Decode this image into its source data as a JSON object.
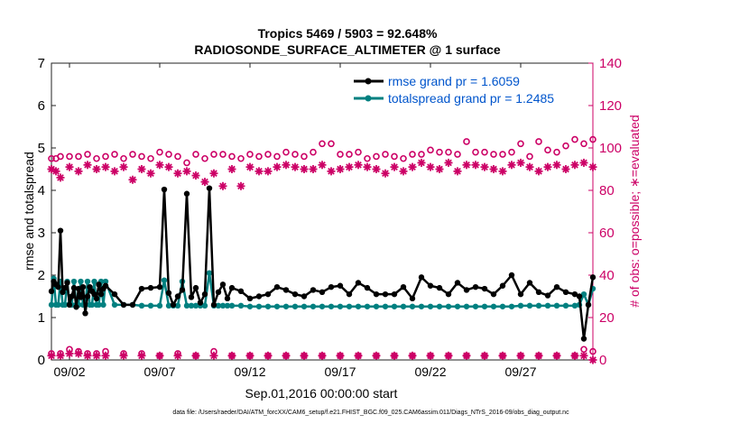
{
  "chart_data": {
    "type": "line",
    "title_line1": "Tropics 5469 / 5903 = 92.648%",
    "title_line2": "RADIOSONDE_SURFACE_ALTIMETER @ 1 surface",
    "xlabel": "Sep.01,2016 00:00:00 start",
    "ylabel_left": "rmse and totalspread",
    "ylabel_right": "# of obs: o=possible; ∗=evaluated",
    "footnote": "data file: /Users/raeder/DAI/ATM_forcXX/CAM6_setup/f.e21.FHIST_BGC.f09_025.CAM6assim.011/Diags_NTrS_2016-09/obs_diag_output.nc",
    "x_range": [
      1.0,
      31.0
    ],
    "ylim_left": [
      0,
      7
    ],
    "ylim_right": [
      0,
      140
    ],
    "x_ticks": [
      {
        "x": 2,
        "label": "09/02"
      },
      {
        "x": 7,
        "label": "09/07"
      },
      {
        "x": 12,
        "label": "09/12"
      },
      {
        "x": 17,
        "label": "09/17"
      },
      {
        "x": 22,
        "label": "09/22"
      },
      {
        "x": 27,
        "label": "09/27"
      }
    ],
    "y_ticks_left": [
      0,
      1,
      2,
      3,
      4,
      5,
      6,
      7
    ],
    "y_ticks_right": [
      0,
      20,
      40,
      60,
      80,
      100,
      120,
      140
    ],
    "colors": {
      "rmse": "#000000",
      "spread": "#008080",
      "obs": "#cc0066",
      "legend_text": "#0055cc",
      "axis": "#222222"
    },
    "legend": [
      {
        "name": "rmse grand pr = 1.6059",
        "key": "rmse"
      },
      {
        "name": "totalspread grand pr = 1.2485",
        "key": "spread"
      }
    ],
    "series": [
      {
        "name": "rmse",
        "axis": "left",
        "x": [
          1.0,
          1.125,
          1.25,
          1.375,
          1.5,
          1.625,
          1.75,
          1.875,
          2.0,
          2.125,
          2.25,
          2.375,
          2.5,
          2.625,
          2.75,
          2.875,
          3.0,
          3.125,
          3.25,
          3.375,
          3.5,
          3.625,
          3.75,
          3.875,
          4.0,
          4.5,
          5.0,
          5.5,
          6.0,
          6.5,
          7.0,
          7.25,
          7.5,
          7.75,
          8.0,
          8.25,
          8.5,
          8.75,
          9.0,
          9.25,
          9.5,
          9.75,
          10.0,
          10.25,
          10.5,
          10.75,
          11.0,
          11.5,
          12.0,
          12.5,
          13.0,
          13.5,
          14.0,
          14.5,
          15.0,
          15.5,
          16.0,
          16.5,
          17.0,
          17.5,
          18.0,
          18.5,
          19.0,
          19.5,
          20.0,
          20.5,
          21.0,
          21.5,
          22.0,
          22.5,
          23.0,
          23.5,
          24.0,
          24.5,
          25.0,
          25.5,
          26.0,
          26.5,
          27.0,
          27.5,
          28.0,
          28.5,
          29.0,
          29.5,
          30.0,
          30.25,
          30.5,
          30.75,
          31.0
        ],
        "values": [
          1.62,
          1.85,
          1.78,
          1.72,
          3.05,
          1.6,
          1.7,
          1.82,
          1.3,
          1.5,
          1.7,
          1.25,
          1.68,
          1.48,
          1.72,
          1.1,
          1.5,
          1.72,
          1.62,
          1.55,
          1.45,
          1.78,
          1.55,
          1.68,
          1.75,
          1.55,
          1.3,
          1.3,
          1.68,
          1.7,
          1.72,
          4.02,
          1.58,
          1.3,
          1.5,
          1.65,
          3.92,
          1.48,
          1.7,
          1.35,
          1.55,
          4.05,
          1.3,
          1.6,
          1.78,
          1.45,
          1.7,
          1.62,
          1.45,
          1.5,
          1.55,
          1.72,
          1.65,
          1.55,
          1.5,
          1.65,
          1.6,
          1.72,
          1.75,
          1.55,
          1.82,
          1.7,
          1.55,
          1.55,
          1.55,
          1.72,
          1.45,
          1.95,
          1.75,
          1.7,
          1.55,
          1.82,
          1.65,
          1.72,
          1.68,
          1.55,
          1.75,
          2.0,
          1.55,
          1.82,
          1.6,
          1.52,
          1.72,
          1.6,
          1.55,
          1.5,
          0.5,
          1.3,
          1.95
        ]
      },
      {
        "name": "totalspread",
        "axis": "left",
        "x": [
          1.0,
          1.125,
          1.25,
          1.375,
          1.5,
          1.625,
          1.75,
          1.875,
          2.0,
          2.125,
          2.25,
          2.375,
          2.5,
          2.625,
          2.75,
          2.875,
          3.0,
          3.125,
          3.25,
          3.375,
          3.5,
          3.625,
          3.75,
          3.875,
          4.0,
          4.5,
          5.0,
          5.5,
          6.0,
          6.5,
          7.0,
          7.25,
          7.5,
          7.75,
          8.0,
          8.25,
          8.5,
          8.75,
          9.0,
          9.25,
          9.5,
          9.75,
          10.0,
          10.25,
          10.5,
          10.75,
          11.0,
          11.5,
          12.0,
          12.5,
          13.0,
          13.5,
          14.0,
          14.5,
          15.0,
          15.5,
          16.0,
          16.5,
          17.0,
          17.5,
          18.0,
          18.5,
          19.0,
          19.5,
          20.0,
          20.5,
          21.0,
          21.5,
          22.0,
          22.5,
          23.0,
          23.5,
          24.0,
          24.5,
          25.0,
          25.5,
          26.0,
          26.5,
          27.0,
          27.5,
          28.0,
          28.5,
          29.0,
          29.5,
          30.0,
          30.25,
          30.5,
          30.75,
          31.0
        ],
        "values": [
          1.3,
          1.92,
          1.3,
          1.3,
          1.85,
          1.3,
          1.3,
          1.85,
          1.32,
          1.3,
          1.85,
          1.3,
          1.3,
          1.85,
          1.3,
          1.3,
          1.85,
          1.3,
          1.3,
          1.85,
          1.3,
          1.3,
          1.85,
          1.3,
          1.85,
          1.3,
          1.3,
          1.3,
          1.28,
          1.28,
          1.28,
          1.88,
          1.28,
          1.28,
          1.28,
          1.85,
          1.28,
          1.28,
          1.28,
          1.28,
          1.28,
          2.05,
          1.28,
          1.28,
          1.28,
          1.28,
          1.28,
          1.28,
          1.26,
          1.26,
          1.26,
          1.26,
          1.26,
          1.26,
          1.26,
          1.26,
          1.26,
          1.26,
          1.26,
          1.26,
          1.26,
          1.26,
          1.26,
          1.26,
          1.26,
          1.26,
          1.26,
          1.26,
          1.26,
          1.26,
          1.26,
          1.26,
          1.26,
          1.26,
          1.26,
          1.26,
          1.26,
          1.26,
          1.28,
          1.28,
          1.28,
          1.28,
          1.28,
          1.28,
          1.28,
          1.3,
          1.55,
          1.3,
          1.68
        ]
      },
      {
        "name": "possible",
        "axis": "right",
        "x": [
          1.0,
          1.25,
          1.5,
          2.0,
          2.5,
          3.0,
          3.5,
          4.0,
          4.5,
          5.0,
          5.5,
          6.0,
          6.5,
          7.0,
          7.5,
          8.0,
          8.5,
          9.0,
          9.5,
          10.0,
          10.5,
          11.0,
          11.5,
          12.0,
          12.5,
          13.0,
          13.5,
          14.0,
          14.5,
          15.0,
          15.5,
          16.0,
          16.5,
          17.0,
          17.5,
          18.0,
          18.5,
          19.0,
          19.5,
          20.0,
          20.5,
          21.0,
          21.5,
          22.0,
          22.5,
          23.0,
          23.5,
          24.0,
          24.5,
          25.0,
          25.5,
          26.0,
          26.5,
          27.0,
          27.5,
          28.0,
          28.5,
          29.0,
          29.5,
          30.0,
          30.5,
          31.0
        ],
        "values": [
          95,
          95,
          96,
          96,
          96,
          97,
          95,
          96,
          97,
          95,
          97,
          96,
          95,
          98,
          97,
          96,
          93,
          97,
          95,
          97,
          97,
          96,
          95,
          97,
          96,
          97,
          96,
          98,
          97,
          96,
          98,
          102,
          102,
          97,
          97,
          98,
          95,
          96,
          97,
          96,
          95,
          97,
          97,
          99,
          98,
          98,
          97,
          103,
          98,
          98,
          97,
          97,
          98,
          102,
          96,
          103,
          99,
          98,
          101,
          104,
          102,
          104
        ]
      },
      {
        "name": "evaluated",
        "axis": "right",
        "x": [
          1.0,
          1.25,
          1.5,
          2.0,
          2.5,
          3.0,
          3.5,
          4.0,
          4.5,
          5.0,
          5.5,
          6.0,
          6.5,
          7.0,
          7.5,
          8.0,
          8.5,
          9.0,
          9.5,
          10.0,
          10.5,
          11.0,
          11.5,
          12.0,
          12.5,
          13.0,
          13.5,
          14.0,
          14.5,
          15.0,
          15.5,
          16.0,
          16.5,
          17.0,
          17.5,
          18.0,
          18.5,
          19.0,
          19.5,
          20.0,
          20.5,
          21.0,
          21.5,
          22.0,
          22.5,
          23.0,
          23.5,
          24.0,
          24.5,
          25.0,
          25.5,
          26.0,
          26.5,
          27.0,
          27.5,
          28.0,
          28.5,
          29.0,
          29.5,
          30.0,
          30.5,
          31.0
        ],
        "values": [
          90,
          89,
          86,
          91,
          89,
          92,
          90,
          91,
          89,
          91,
          85,
          90,
          88,
          92,
          91,
          88,
          89,
          87,
          84,
          88,
          82,
          90,
          82,
          91,
          89,
          89,
          91,
          92,
          91,
          90,
          90,
          92,
          89,
          90,
          91,
          92,
          91,
          90,
          88,
          91,
          89,
          91,
          93,
          91,
          90,
          93,
          89,
          92,
          92,
          91,
          90,
          89,
          92,
          93,
          91,
          89,
          91,
          92,
          90,
          92,
          93,
          91
        ]
      },
      {
        "name": "possible_bottom",
        "axis": "right",
        "x": [
          1.0,
          1.5,
          2.0,
          2.5,
          3.0,
          3.5,
          4.0,
          5.0,
          6.0,
          7.0,
          8.0,
          9.0,
          10.0,
          11.0,
          12.0,
          13.0,
          14.0,
          15.0,
          16.0,
          17.0,
          18.0,
          19.0,
          20.0,
          21.0,
          22.0,
          23.0,
          24.0,
          25.0,
          26.0,
          27.0,
          28.0,
          29.0,
          30.0,
          30.5,
          31.0
        ],
        "values": [
          3,
          3,
          5,
          4,
          3,
          3,
          4,
          3,
          3,
          2,
          3,
          2,
          4,
          2,
          2,
          2,
          2,
          2,
          2,
          2,
          2,
          2,
          2,
          2,
          2,
          2,
          2,
          2,
          2,
          2,
          2,
          2,
          2,
          5,
          4
        ]
      },
      {
        "name": "evaluated_bottom",
        "axis": "right",
        "x": [
          1.0,
          1.5,
          2.0,
          2.5,
          3.0,
          3.5,
          4.0,
          5.0,
          6.0,
          7.0,
          8.0,
          9.0,
          10.0,
          11.0,
          12.0,
          13.0,
          14.0,
          15.0,
          16.0,
          17.0,
          18.0,
          19.0,
          20.0,
          21.0,
          22.0,
          23.0,
          24.0,
          25.0,
          26.0,
          27.0,
          28.0,
          29.0,
          30.0,
          30.5,
          31.0
        ],
        "values": [
          2,
          2,
          3,
          3,
          2,
          2,
          2,
          2,
          2,
          2,
          2,
          2,
          2,
          2,
          2,
          2,
          2,
          2,
          2,
          2,
          2,
          2,
          2,
          2,
          2,
          2,
          2,
          2,
          2,
          2,
          2,
          2,
          2,
          2,
          0
        ]
      }
    ]
  }
}
